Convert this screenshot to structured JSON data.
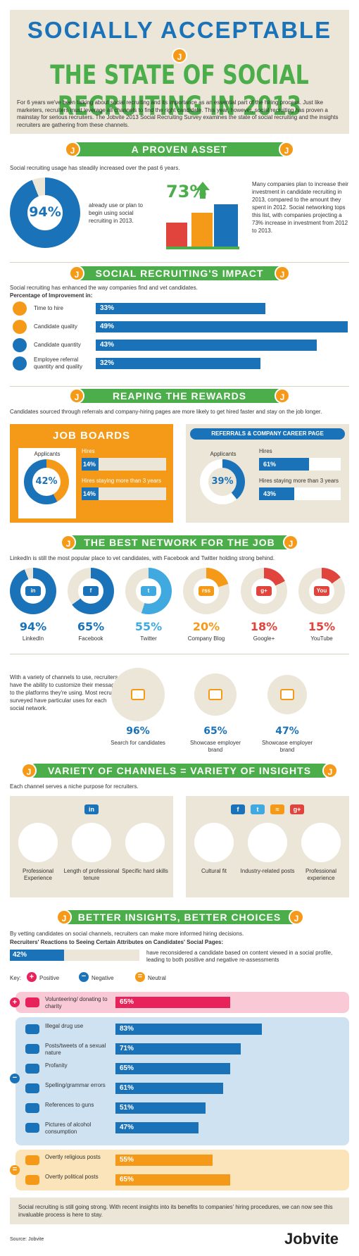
{
  "header": {
    "title1": "SOCIALLY ACCEPTABLE",
    "title2": "THE STATE OF SOCIAL RECRUITING IN 2013",
    "intro": "For 6 years we've been talking about social recruiting and its importance as an essential part of the hiring process. Just like marketers, recruiters must leverage all channels to find the right candidate. This year, however, social recruiting has proven a mainstay for serious recruiters. The Jobvite 2013 Social Recruiting Survey examines the state of social recruiting and the insights recruiters are gathering from these channels.",
    "logo": "J"
  },
  "proven": {
    "title": "A PROVEN ASSET",
    "sub": "Social recruiting usage has steadily increased over the past 6 years.",
    "pct": "94%",
    "pct_text": "already use or plan to begin using social recruiting in 2013.",
    "pct2": "73%",
    "pct2_text": "Many companies plan to increase their investment in candidate recruiting in 2013, compared to the amount they spent in 2012. Social networking tops this list, with companies projecting a 73% increase in investment from 2012 to 2013."
  },
  "impact": {
    "title": "SOCIAL RECRUITING'S IMPACT",
    "sub": "Social recruiting has enhanced the way companies find and vet candidates.",
    "label": "Percentage of Improvement in:",
    "rows": [
      {
        "label": "Time to hire",
        "value": 33,
        "text": "33%"
      },
      {
        "label": "Candidate quality",
        "value": 49,
        "text": "49%"
      },
      {
        "label": "Candidate quantity",
        "value": 43,
        "text": "43%"
      },
      {
        "label": "Employee referral quantity and quality",
        "value": 32,
        "text": "32%"
      }
    ]
  },
  "rewards": {
    "title": "REAPING THE REWARDS",
    "sub": "Candidates sourced through referrals and company-hiring pages are more likely to get hired faster and stay on the job longer.",
    "job_boards": {
      "title": "JOB BOARDS",
      "applicants_label": "Applicants",
      "applicants": "42%",
      "hires_label": "Hires",
      "hires": "14%",
      "staying_label": "Hires staying more than 3 years",
      "staying": "14%"
    },
    "referrals": {
      "title": "REFERRALS & COMPANY CAREER PAGE",
      "applicants_label": "Applicants",
      "applicants": "39%",
      "hires_label": "Hires",
      "hires": "61%",
      "staying_label": "Hires staying more than 3 years",
      "staying": "43%"
    }
  },
  "network": {
    "title": "THE BEST NETWORK FOR THE JOB",
    "sub": "LinkedIn is still the most popular place to vet candidates, with Facebook and Twitter holding strong behind.",
    "items": [
      {
        "name": "LinkedIn",
        "pct": "94%",
        "value": 94,
        "color": "#1a72b8",
        "icon": "in"
      },
      {
        "name": "Facebook",
        "pct": "65%",
        "value": 65,
        "color": "#1a72b8",
        "icon": "f"
      },
      {
        "name": "Twitter",
        "pct": "55%",
        "value": 55,
        "color": "#3fa9e0",
        "icon": "t"
      },
      {
        "name": "Company Blog",
        "pct": "20%",
        "value": 20,
        "color": "#f59a18",
        "icon": "rss"
      },
      {
        "name": "Google+",
        "pct": "18%",
        "value": 18,
        "color": "#e0443c",
        "icon": "g+"
      },
      {
        "name": "YouTube",
        "pct": "15%",
        "value": 15,
        "color": "#e0443c",
        "icon": "You"
      }
    ],
    "custom_text": "With a variety of channels to use, recruiters have the ability to customize their messages to the platforms they're using. Most recruiters surveyed have particular uses for each social network.",
    "uses": [
      {
        "pct": "96%",
        "label": "Search for candidates"
      },
      {
        "pct": "65%",
        "label": "Showcase employer brand"
      },
      {
        "pct": "47%",
        "label": "Showcase employer brand"
      }
    ]
  },
  "variety": {
    "title": "VARIETY OF CHANNELS = VARIETY OF INSIGHTS",
    "sub": "Each channel serves a niche purpose for recruiters.",
    "linkedin": [
      "Professional Experience",
      "Length of professional tenure",
      "Specific hard skills"
    ],
    "others": [
      "Cultural fit",
      "Industry-related posts",
      "Professional experience"
    ]
  },
  "insights": {
    "title": "BETTER INSIGHTS, BETTER CHOICES",
    "sub": "By vetting candidates on social channels, recruiters can make more informed hiring decisions.",
    "label": "Recruiters' Reactions to Seeing Certain Attributes on Candidates' Social Pages:",
    "reconsider_pct": "42%",
    "reconsider_value": 42,
    "reconsider_text": "have reconsidered a candidate based on content viewed in a social profile, leading to both positive and negative re-assessments",
    "key_label": "Key:",
    "key": [
      "Positive",
      "Negative",
      "Neutral"
    ],
    "positive": [
      {
        "label": "Volunteering/ donating to charity",
        "value": 65,
        "text": "65%"
      }
    ],
    "negative": [
      {
        "label": "Illegal drug use",
        "value": 83,
        "text": "83%"
      },
      {
        "label": "Posts/tweets of a sexual nature",
        "value": 71,
        "text": "71%"
      },
      {
        "label": "Profanity",
        "value": 65,
        "text": "65%"
      },
      {
        "label": "Spelling/grammar errors",
        "value": 61,
        "text": "61%"
      },
      {
        "label": "References to guns",
        "value": 51,
        "text": "51%"
      },
      {
        "label": "Pictures of alcohol consumption",
        "value": 47,
        "text": "47%"
      }
    ],
    "neutral": [
      {
        "label": "Overtly religious posts",
        "value": 55,
        "text": "55%"
      },
      {
        "label": "Overtly political posts",
        "value": 65,
        "text": "65%"
      }
    ],
    "conclusion": "Social recruiting is still going strong. With recent insights into its benefits to companies' hiring procedures, we can now see this invaluable process is here to stay."
  },
  "footer": {
    "source": "Source: Jobvite",
    "brand": "Jobvite"
  },
  "colors": {
    "blue": "#1a72b8",
    "green": "#4cae4a",
    "orange": "#f59a18",
    "red": "#e8225a",
    "beige": "#ece6d8"
  }
}
